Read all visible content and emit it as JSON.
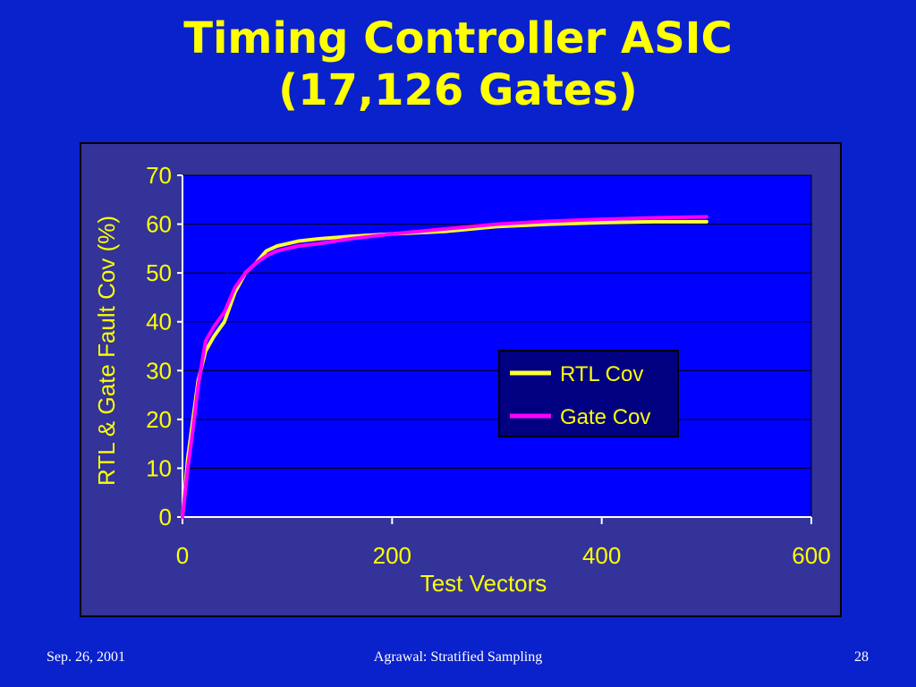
{
  "slide": {
    "title_line1": "Timing Controller ASIC",
    "title_line2": "(17,126 Gates)"
  },
  "footer": {
    "date": "Sep. 26, 2001",
    "center": "Agrawal: Stratified Sampling",
    "page": "28"
  },
  "colors": {
    "background": "#0a22cc",
    "title": "#ffff00",
    "plot_area": "#0000ff",
    "chart_frame": "#333399",
    "axis_text": "#ffff00",
    "rtl_line": "#ffff33",
    "gate_line": "#ff00ff"
  },
  "chart_data": {
    "type": "line",
    "title": "",
    "xlabel": "Test Vectors",
    "ylabel": "RTL & Gate Fault Cov (%)",
    "xlim": [
      0,
      600
    ],
    "ylim": [
      0,
      70
    ],
    "xticks": [
      0,
      200,
      400,
      600
    ],
    "yticks": [
      0,
      10,
      20,
      30,
      40,
      50,
      60,
      70
    ],
    "grid": "horizontal",
    "legend_position": "center-right",
    "series": [
      {
        "name": "RTL Cov",
        "color": "#ffff33",
        "x": [
          0,
          5,
          10,
          15,
          22,
          30,
          40,
          50,
          60,
          70,
          80,
          90,
          100,
          110,
          130,
          160,
          200,
          250,
          300,
          350,
          400,
          450,
          500
        ],
        "y": [
          0,
          12,
          20,
          28,
          34,
          37,
          40,
          46,
          50,
          52,
          54.5,
          55.5,
          56,
          56.5,
          57,
          57.5,
          58,
          58.5,
          59.5,
          60,
          60.3,
          60.5,
          60.5
        ]
      },
      {
        "name": "Gate Cov",
        "color": "#ff00ff",
        "x": [
          0,
          5,
          10,
          15,
          22,
          30,
          40,
          50,
          60,
          70,
          80,
          90,
          100,
          110,
          130,
          160,
          200,
          250,
          300,
          350,
          400,
          450,
          500
        ],
        "y": [
          0,
          10,
          18,
          27,
          36,
          39,
          42,
          47,
          50,
          52,
          53.5,
          54.5,
          55,
          55.5,
          56,
          57,
          58,
          59,
          60,
          60.6,
          61,
          61.3,
          61.5
        ]
      }
    ]
  }
}
